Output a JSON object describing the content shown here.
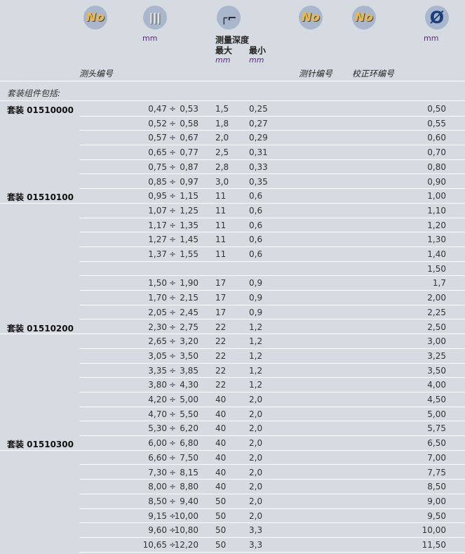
{
  "header": {
    "icons": [
      {
        "name": "number-icon",
        "text": "No"
      },
      {
        "name": "probe-diameter-icon"
      },
      {
        "name": "measuring-depth-icon"
      },
      {
        "name": "number-icon",
        "text": "No"
      },
      {
        "name": "number-icon",
        "text": "No"
      },
      {
        "name": "diameter-icon",
        "text": "Ø"
      }
    ],
    "range_unit": "mm",
    "depth_title": "测量深度",
    "depth_max": "最大",
    "depth_min": "最小",
    "depth_max_unit": "mm",
    "depth_min_unit": "mm",
    "ring_unit": "mm",
    "probe_no": "测头编号",
    "pin_no": "测针编号",
    "ring_no": "校正环编号"
  },
  "kit_includes": "套装组件包括:",
  "rows": [
    {
      "kit": "套装 01510000",
      "a": "0,47",
      "b": "0,53",
      "max": "1,5",
      "min": "0,25",
      "ring": "0,50"
    },
    {
      "a": "0,52",
      "b": "0,58",
      "max": "1,8",
      "min": "0,27",
      "ring": "0,55"
    },
    {
      "a": "0,57",
      "b": "0,67",
      "max": "2,0",
      "min": "0,29",
      "ring": "0,60"
    },
    {
      "a": "0,65",
      "b": "0,77",
      "max": "2,5",
      "min": "0,31",
      "ring": "0,70"
    },
    {
      "a": "0,75",
      "b": "0,87",
      "max": "2,8",
      "min": "0,33",
      "ring": "0,80"
    },
    {
      "a": "0,85",
      "b": "0,97",
      "max": "3,0",
      "min": "0,35",
      "ring": "0,90"
    },
    {
      "kit": "套装 01510100",
      "a": "0,95",
      "b": "1,15",
      "max": "11",
      "min": "0,6",
      "ring": "1,00"
    },
    {
      "a": "1,07",
      "b": "1,25",
      "max": "11",
      "min": "0,6",
      "ring": "1,10"
    },
    {
      "a": "1,17",
      "b": "1,35",
      "max": "11",
      "min": "0,6",
      "ring": "1,20"
    },
    {
      "a": "1,27",
      "b": "1,45",
      "max": "11",
      "min": "0,6",
      "ring": "1,30"
    },
    {
      "a": "1,37",
      "b": "1,55",
      "max": "11",
      "min": "0,6",
      "ring": "1,40"
    },
    {
      "ring": "1,50"
    },
    {
      "a": "1,50",
      "b": "1,90",
      "max": "17",
      "min": "0,9",
      "ring": "1,7"
    },
    {
      "a": "1,70",
      "b": "2,15",
      "max": "17",
      "min": "0,9",
      "ring": "2,00"
    },
    {
      "a": "2,05",
      "b": "2,45",
      "max": "17",
      "min": "0,9",
      "ring": "2,25"
    },
    {
      "kit": "套装 01510200",
      "a": "2,30",
      "b": "2,75",
      "max": "22",
      "min": "1,2",
      "ring": "2,50"
    },
    {
      "a": "2,65",
      "b": "3,20",
      "max": "22",
      "min": "1,2",
      "ring": "3,00"
    },
    {
      "a": "3,05",
      "b": "3,50",
      "max": "22",
      "min": "1,2",
      "ring": "3,25"
    },
    {
      "a": "3,35",
      "b": "3,85",
      "max": "22",
      "min": "1,2",
      "ring": "3,50"
    },
    {
      "a": "3,80",
      "b": "4,30",
      "max": "22",
      "min": "1,2",
      "ring": "4,00"
    },
    {
      "a": "4,20",
      "b": "5,00",
      "max": "40",
      "min": "2,0",
      "ring": "4,50"
    },
    {
      "a": "4,70",
      "b": "5,50",
      "max": "40",
      "min": "2,0",
      "ring": "5,00"
    },
    {
      "a": "5,30",
      "b": "6,20",
      "max": "40",
      "min": "2,0",
      "ring": "5,75"
    },
    {
      "kit": "套装 01510300",
      "a": "6,00",
      "b": "6,80",
      "max": "40",
      "min": "2,0",
      "ring": "6,50"
    },
    {
      "a": "6,60",
      "b": "7,50",
      "max": "40",
      "min": "2,0",
      "ring": "7,00"
    },
    {
      "a": "7,30",
      "b": "8,15",
      "max": "40",
      "min": "2,0",
      "ring": "7,75"
    },
    {
      "a": "8,00",
      "b": "8,80",
      "max": "40",
      "min": "2,0",
      "ring": "8,50"
    },
    {
      "a": "8,50",
      "b": "9,40",
      "max": "50",
      "min": "2,0",
      "ring": "9,00"
    },
    {
      "a": "9,15",
      "b": "10,00",
      "max": "50",
      "min": "2,0",
      "ring": "9,50"
    },
    {
      "a": "9,60",
      "b": "10,80",
      "max": "50",
      "min": "3,3",
      "ring": "10,00"
    },
    {
      "a": "10,65",
      "b": "12,20",
      "max": "50",
      "min": "3,3",
      "ring": "11,50"
    }
  ],
  "divider": "÷"
}
